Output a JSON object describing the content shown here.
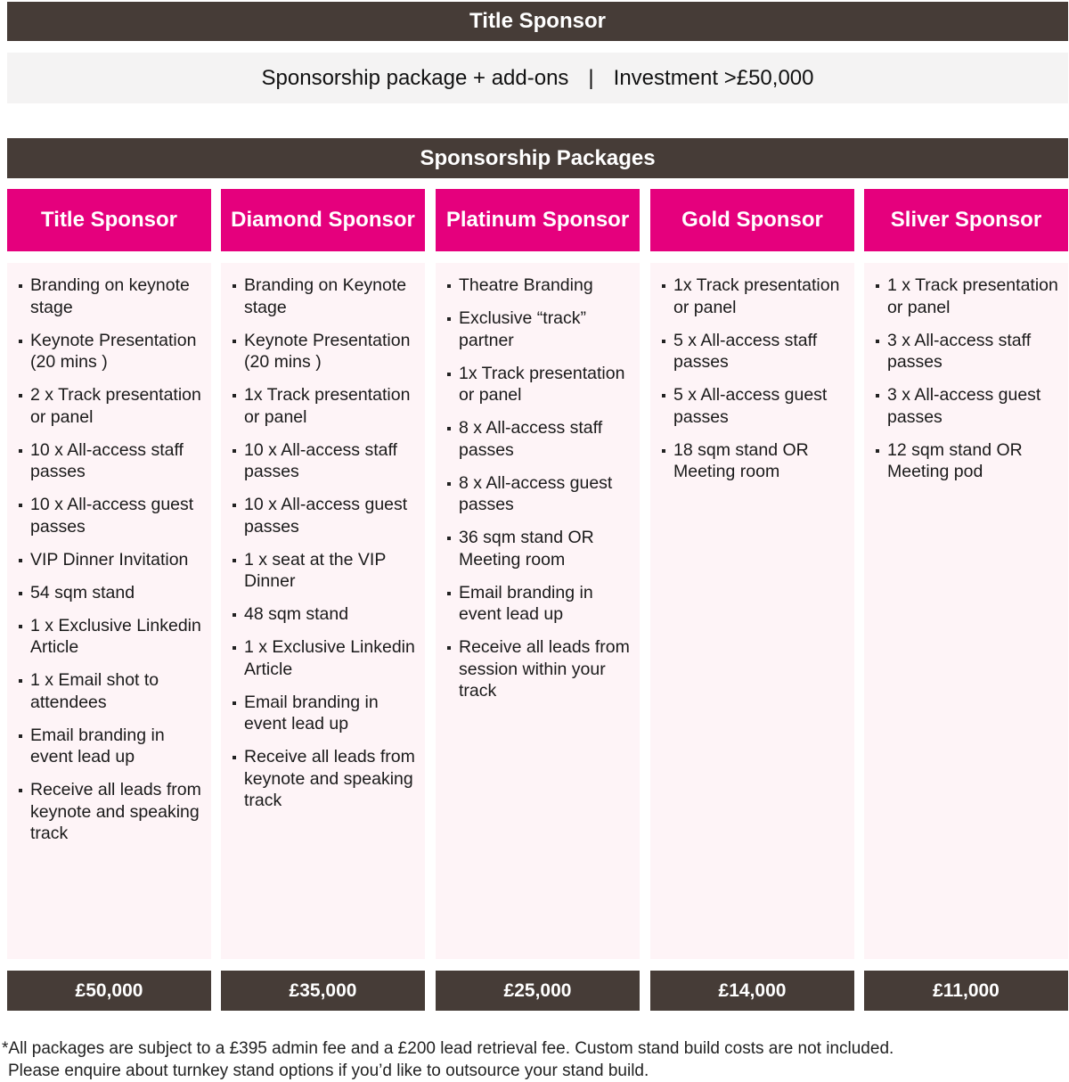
{
  "header": {
    "title": "Title Sponsor"
  },
  "summary": {
    "left": "Sponsorship package + add-ons",
    "separator": "|",
    "right": "Investment >£50,000"
  },
  "packages_title": "Sponsorship Packages",
  "colors": {
    "dark": "#463c37",
    "accent": "#e5007d",
    "panel": "#fef4f7",
    "band": "#f4f3f3"
  },
  "columns": [
    {
      "name": "Title Sponsor",
      "price": "£50,000",
      "items": [
        "Branding on keynote stage",
        "Keynote Presentation (20 mins )",
        "2 x Track presentation or panel",
        "10 x All-access staff passes",
        "10 x All-access guest passes",
        "VIP Dinner Invitation",
        "54 sqm stand",
        "1 x Exclusive Linkedin Article",
        "1 x Email shot to attendees",
        "Email branding in event lead up",
        "Receive all leads from keynote and speaking track"
      ]
    },
    {
      "name": "Diamond Sponsor",
      "price": "£35,000",
      "items": [
        "Branding on Keynote stage",
        "Keynote Presentation (20 mins )",
        "1x Track presentation or panel",
        "10 x All-access staff passes",
        "10 x All-access guest passes",
        "1 x seat at the VIP Dinner",
        "48 sqm stand",
        "1 x Exclusive Linkedin Article",
        "Email branding in event lead up",
        "Receive all leads from keynote and speaking track"
      ]
    },
    {
      "name": "Platinum Sponsor",
      "price": "£25,000",
      "items": [
        "Theatre Branding",
        "Exclusive “track” partner",
        "1x Track presentation or panel",
        "8 x All-access staff passes",
        "8 x All-access guest passes",
        "36 sqm stand OR Meeting room",
        "Email branding in event lead up",
        "Receive all leads from session within your track"
      ]
    },
    {
      "name": "Gold Sponsor",
      "price": "£14,000",
      "items": [
        "1x Track presentation or panel",
        "5 x All-access staff passes",
        "5 x All-access guest passes",
        "18 sqm stand OR Meeting room"
      ]
    },
    {
      "name": "Sliver Sponsor",
      "price": "£11,000",
      "items": [
        "1 x Track presentation or panel",
        "3 x All-access staff passes",
        "3 x All-access guest passes",
        "12 sqm stand OR Meeting pod"
      ]
    }
  ],
  "footnote": {
    "line1": "*All packages are subject to a £395 admin fee and a £200 lead retrieval fee. Custom stand build costs are not included.",
    "line2": "Please enquire about turnkey stand options if you’d like to outsource your stand build."
  }
}
